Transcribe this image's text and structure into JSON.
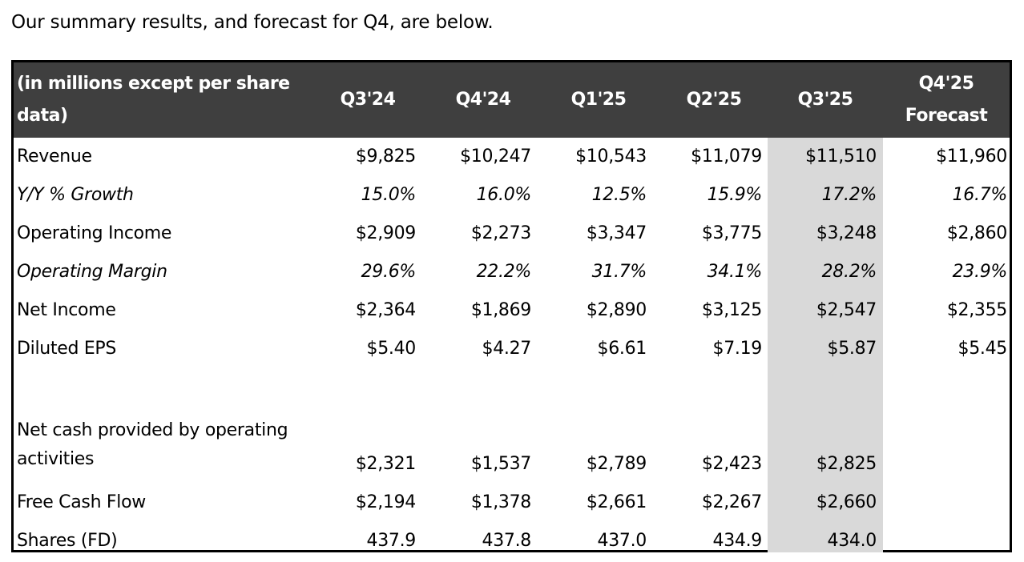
{
  "intro_text": "Our summary results, and forecast for Q4, are below.",
  "table": {
    "header": {
      "label": "(in millions except per share data)",
      "columns": [
        "Q3'24",
        "Q4'24",
        "Q1'25",
        "Q2'25",
        "Q3'25",
        "Q4'25 Forecast"
      ]
    },
    "highlight_color": "#d9d9d9",
    "header_color": "#3f3f3f",
    "rows": [
      {
        "label": "Revenue",
        "values": [
          "$9,825",
          "$10,247",
          "$10,543",
          "$11,079",
          "$11,510",
          "$11,960"
        ]
      },
      {
        "label": "Y/Y % Growth",
        "values": [
          "15.0%",
          "16.0%",
          "12.5%",
          "15.9%",
          "17.2%",
          "16.7%"
        ]
      },
      {
        "label": "Operating Income",
        "values": [
          "$2,909",
          "$2,273",
          "$3,347",
          "$3,775",
          "$3,248",
          "$2,860"
        ]
      },
      {
        "label": "Operating Margin",
        "values": [
          "29.6%",
          "22.2%",
          "31.7%",
          "34.1%",
          "28.2%",
          "23.9%"
        ]
      },
      {
        "label": "Net Income",
        "values": [
          "$2,364",
          "$1,869",
          "$2,890",
          "$3,125",
          "$2,547",
          "$2,355"
        ]
      },
      {
        "label": "Diluted EPS",
        "values": [
          "$5.40",
          "$4.27",
          "$6.61",
          "$7.19",
          "$5.87",
          "$5.45"
        ]
      },
      {
        "label": "Net cash provided by operating activities",
        "values": [
          "$2,321",
          "$1,537",
          "$2,789",
          "$2,423",
          "$2,825",
          ""
        ]
      },
      {
        "label": "Free Cash Flow",
        "values": [
          "$2,194",
          "$1,378",
          "$2,661",
          "$2,267",
          "$2,660",
          ""
        ]
      },
      {
        "label": "Shares (FD)",
        "values": [
          "437.9",
          "437.8",
          "437.0",
          "434.9",
          "434.0",
          ""
        ]
      }
    ]
  }
}
